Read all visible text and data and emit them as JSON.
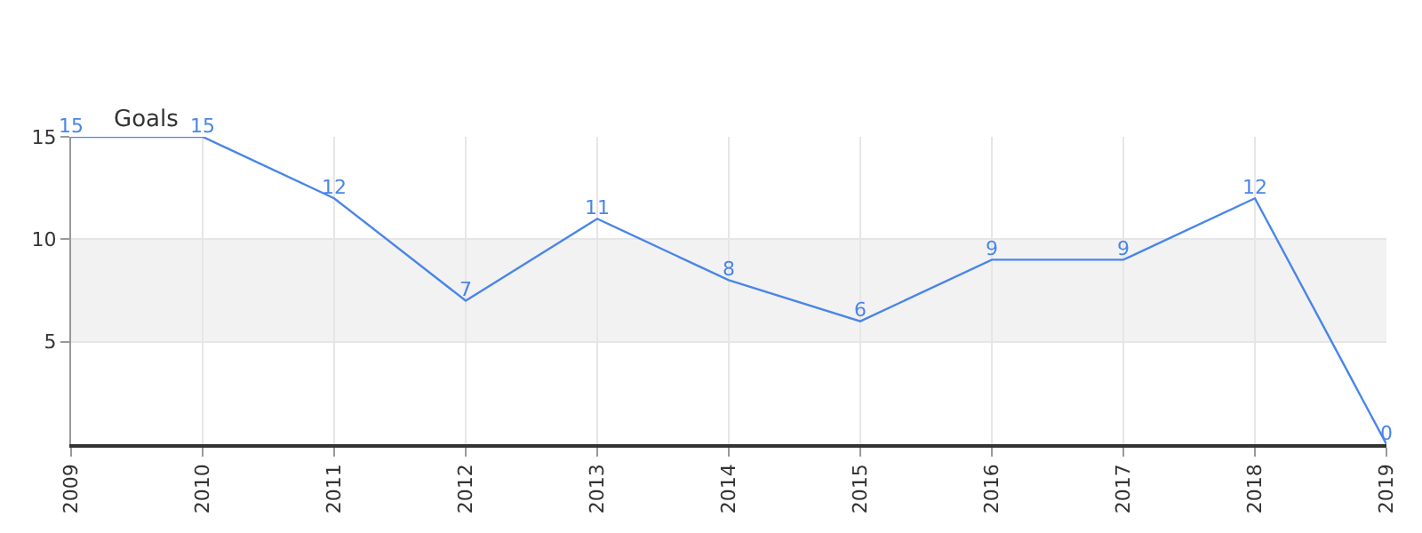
{
  "chart_data": {
    "type": "line",
    "ylabel": "Goals",
    "x": [
      2009,
      2010,
      2011,
      2012,
      2013,
      2014,
      2015,
      2016,
      2017,
      2018,
      2019
    ],
    "series": [
      {
        "color": "#4a86e8",
        "values": [
          15,
          15,
          12,
          7,
          11,
          8,
          6,
          9,
          9,
          12,
          0
        ]
      }
    ],
    "xlim": [
      2009,
      2019
    ],
    "xticks": [
      2009,
      2010,
      2011,
      2012,
      2013,
      2014,
      2015,
      2016,
      2017,
      2018,
      2019
    ],
    "ylim": [
      0,
      15
    ],
    "yticks": [
      5,
      10,
      15
    ],
    "bands": [
      {
        "axis": "y",
        "from": 5,
        "to": 10,
        "color": "#f2f2f2"
      }
    ],
    "grid": true,
    "data_labels": true,
    "marker": "none",
    "line_style": "solid"
  }
}
